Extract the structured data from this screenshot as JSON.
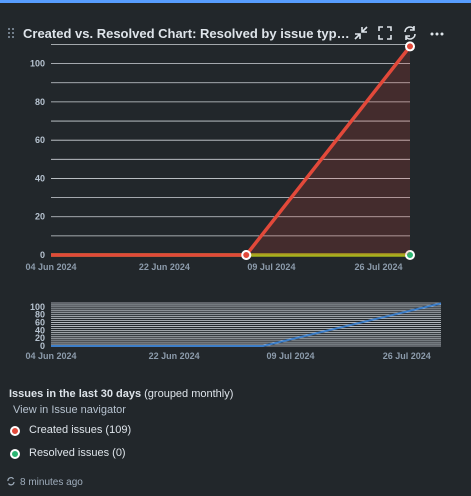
{
  "gadget": {
    "title": "Created vs. Resolved Chart: Resolved by issue type las...",
    "accent_color": "#579dff",
    "icons": [
      "minimize-icon",
      "fullscreen-icon",
      "refresh-icon",
      "more-icon"
    ]
  },
  "chart_data": [
    {
      "type": "line",
      "x": [
        "04 Jun 2024",
        "22 Jun 2024",
        "09 Jul 2024",
        "26 Jul 2024"
      ],
      "ylim": [
        0,
        110
      ],
      "yticks": [
        "0",
        "20",
        "40",
        "60",
        "80",
        "100"
      ],
      "grid": true,
      "series": [
        {
          "name": "Created issues",
          "color": "#e2493a",
          "points": [
            [
              "04 Jun 2024",
              0
            ],
            [
              "05 Jul 2024",
              0
            ],
            [
              "31 Jul 2024",
              109
            ]
          ]
        },
        {
          "name": "Resolved issues",
          "color": "#a4b31d",
          "points": [
            [
              "04 Jun 2024",
              0
            ],
            [
              "05 Jul 2024",
              0
            ],
            [
              "31 Jul 2024",
              0
            ]
          ]
        }
      ]
    },
    {
      "type": "line",
      "x": [
        "04 Jun 2024",
        "22 Jun 2024",
        "09 Jul 2024",
        "26 Jul 2024"
      ],
      "ylim": [
        0,
        110
      ],
      "yticks": [
        "0",
        "20",
        "40",
        "60",
        "80",
        "100"
      ],
      "series": [
        {
          "color": "#3d7ec8",
          "points": [
            [
              "04 Jun 2024",
              0
            ],
            [
              "05 Jul 2024",
              0
            ],
            [
              "31 Jul 2024",
              109
            ]
          ]
        }
      ]
    }
  ],
  "legend": {
    "title_bold": "Issues in the last 30 days",
    "title_rest": " (grouped monthly)",
    "navigator_link": "View in Issue navigator",
    "items": [
      {
        "label": "Created issues (109)",
        "color": "#e2493a"
      },
      {
        "label": "Resolved issues (0)",
        "color": "#2bb673"
      }
    ]
  },
  "footer": {
    "updated": "8 minutes ago"
  }
}
